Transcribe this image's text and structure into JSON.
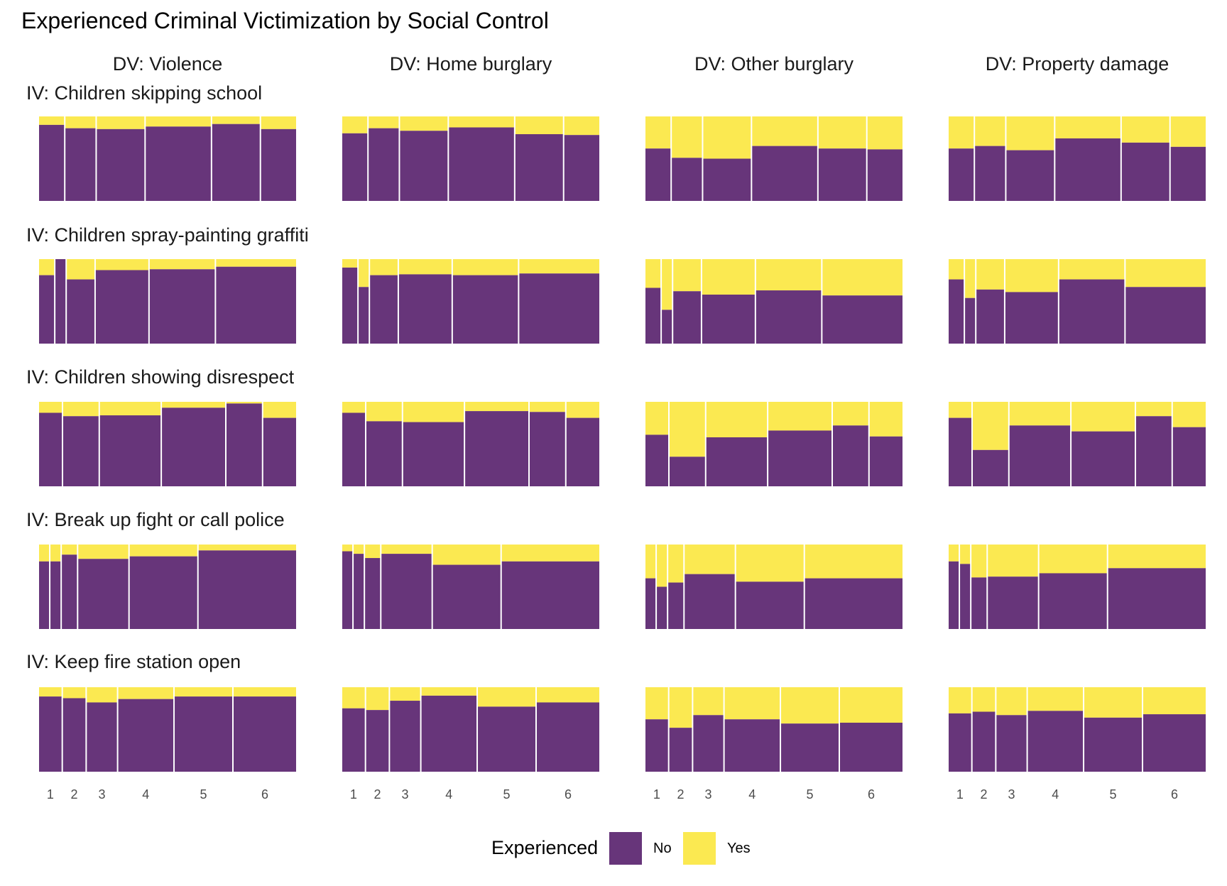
{
  "chart_data": {
    "type": "mosaic",
    "title": "Experienced Criminal Victimization by Social Control",
    "columns": [
      "DV: Violence",
      "DV: Home burglary",
      "DV: Other burglary",
      "DV: Property damage"
    ],
    "rows": [
      "IV: Children skipping school",
      "IV: Children spray-painting graffiti",
      "IV: Children showing disrespect",
      "IV: Break up fight or call police",
      "IV: Keep fire station open"
    ],
    "categories": [
      "1",
      "2",
      "3",
      "4",
      "5",
      "6"
    ],
    "legend": {
      "title": "Experienced",
      "items": [
        {
          "label": "No",
          "color": "#67357a"
        },
        {
          "label": "Yes",
          "color": "#fbe951"
        }
      ]
    },
    "panels": [
      [
        {
          "widths": [
            0.1,
            0.12,
            0.19,
            0.26,
            0.19,
            0.14
          ],
          "no": [
            0.9,
            0.86,
            0.85,
            0.88,
            0.91,
            0.85
          ]
        },
        {
          "widths": [
            0.1,
            0.12,
            0.19,
            0.26,
            0.19,
            0.14
          ],
          "no": [
            0.8,
            0.86,
            0.83,
            0.87,
            0.79,
            0.78
          ]
        },
        {
          "widths": [
            0.1,
            0.12,
            0.19,
            0.26,
            0.19,
            0.14
          ],
          "no": [
            0.62,
            0.51,
            0.5,
            0.65,
            0.62,
            0.61
          ]
        },
        {
          "widths": [
            0.1,
            0.12,
            0.19,
            0.26,
            0.19,
            0.14
          ],
          "no": [
            0.62,
            0.65,
            0.6,
            0.74,
            0.69,
            0.64
          ]
        }
      ],
      [
        {
          "widths": [
            0.06,
            0.04,
            0.11,
            0.21,
            0.26,
            0.32
          ],
          "no": [
            0.81,
            1.0,
            0.76,
            0.87,
            0.88,
            0.91
          ]
        },
        {
          "widths": [
            0.06,
            0.04,
            0.11,
            0.21,
            0.26,
            0.32
          ],
          "no": [
            0.9,
            0.67,
            0.81,
            0.82,
            0.81,
            0.83
          ]
        },
        {
          "widths": [
            0.06,
            0.04,
            0.11,
            0.21,
            0.26,
            0.32
          ],
          "no": [
            0.66,
            0.4,
            0.62,
            0.58,
            0.63,
            0.57
          ]
        },
        {
          "widths": [
            0.06,
            0.04,
            0.11,
            0.21,
            0.26,
            0.32
          ],
          "no": [
            0.76,
            0.54,
            0.64,
            0.61,
            0.76,
            0.67
          ]
        }
      ],
      [
        {
          "widths": [
            0.09,
            0.14,
            0.24,
            0.25,
            0.14,
            0.13
          ],
          "no": [
            0.87,
            0.83,
            0.84,
            0.93,
            0.98,
            0.81
          ]
        },
        {
          "widths": [
            0.09,
            0.14,
            0.24,
            0.25,
            0.14,
            0.13
          ],
          "no": [
            0.87,
            0.77,
            0.76,
            0.89,
            0.88,
            0.81
          ]
        },
        {
          "widths": [
            0.09,
            0.14,
            0.24,
            0.25,
            0.14,
            0.13
          ],
          "no": [
            0.61,
            0.35,
            0.58,
            0.66,
            0.72,
            0.59
          ]
        },
        {
          "widths": [
            0.09,
            0.14,
            0.24,
            0.25,
            0.14,
            0.13
          ],
          "no": [
            0.81,
            0.43,
            0.72,
            0.65,
            0.83,
            0.7
          ]
        }
      ],
      [
        {
          "widths": [
            0.04,
            0.04,
            0.06,
            0.2,
            0.27,
            0.39
          ],
          "no": [
            0.8,
            0.8,
            0.88,
            0.83,
            0.86,
            0.93
          ]
        },
        {
          "widths": [
            0.04,
            0.04,
            0.06,
            0.2,
            0.27,
            0.39
          ],
          "no": [
            0.92,
            0.89,
            0.84,
            0.89,
            0.76,
            0.8
          ]
        },
        {
          "widths": [
            0.04,
            0.04,
            0.06,
            0.2,
            0.27,
            0.39
          ],
          "no": [
            0.6,
            0.5,
            0.55,
            0.65,
            0.56,
            0.6
          ]
        },
        {
          "widths": [
            0.04,
            0.04,
            0.06,
            0.2,
            0.27,
            0.39
          ],
          "no": [
            0.8,
            0.77,
            0.61,
            0.62,
            0.66,
            0.72
          ]
        }
      ],
      [
        {
          "widths": [
            0.09,
            0.09,
            0.12,
            0.22,
            0.23,
            0.25
          ],
          "no": [
            0.89,
            0.87,
            0.82,
            0.86,
            0.89,
            0.89
          ]
        },
        {
          "widths": [
            0.09,
            0.09,
            0.12,
            0.22,
            0.23,
            0.25
          ],
          "no": [
            0.75,
            0.73,
            0.84,
            0.9,
            0.77,
            0.82
          ]
        },
        {
          "widths": [
            0.09,
            0.09,
            0.12,
            0.22,
            0.23,
            0.25
          ],
          "no": [
            0.62,
            0.52,
            0.67,
            0.62,
            0.57,
            0.58
          ]
        },
        {
          "widths": [
            0.09,
            0.09,
            0.12,
            0.22,
            0.23,
            0.25
          ],
          "no": [
            0.69,
            0.71,
            0.67,
            0.72,
            0.64,
            0.68
          ]
        }
      ]
    ]
  }
}
